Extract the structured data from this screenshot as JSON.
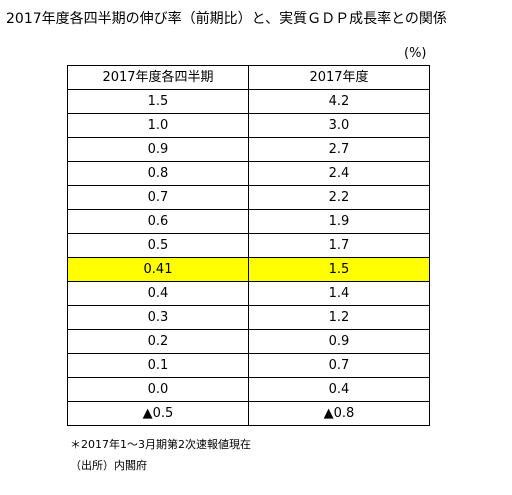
{
  "title": "2017年度各四半期の伸び率（前期比）と、実質ＧＤＰ成長率との関係",
  "unit": "(%)",
  "table": {
    "headers": [
      "2017年度各四半期",
      "2017年度"
    ],
    "rows": [
      {
        "q": "1.5",
        "y": "4.2"
      },
      {
        "q": "1.0",
        "y": "3.0"
      },
      {
        "q": "0.9",
        "y": "2.7"
      },
      {
        "q": "0.8",
        "y": "2.4"
      },
      {
        "q": "0.7",
        "y": "2.2"
      },
      {
        "q": "0.6",
        "y": "1.9"
      },
      {
        "q": "0.5",
        "y": "1.7"
      },
      {
        "q": "0.41",
        "y": "1.5",
        "highlight": true
      },
      {
        "q": "0.4",
        "y": "1.4"
      },
      {
        "q": "0.3",
        "y": "1.2"
      },
      {
        "q": "0.2",
        "y": "0.9"
      },
      {
        "q": "0.1",
        "y": "0.7"
      },
      {
        "q": "0.0",
        "y": "0.4"
      },
      {
        "q": "▲0.5",
        "y": "▲0.8"
      }
    ]
  },
  "note": "＊2017年1～3月期第2次速報値現在",
  "source": "（出所）内閣府",
  "colors": {
    "highlight": "#ffff00"
  }
}
